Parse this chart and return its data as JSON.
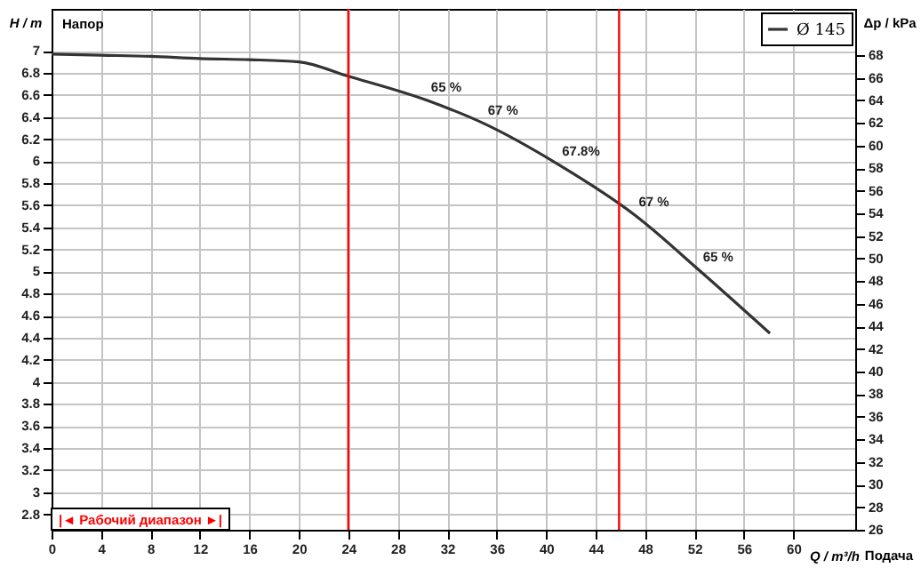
{
  "chart_data": {
    "type": "line",
    "xlabel": "Q / m³/h",
    "ylabel": "H / m",
    "y2label": "Δp / kPa",
    "series": [
      {
        "name": "Ø 145",
        "color": "#333333",
        "x": [
          0,
          4,
          8,
          12,
          16,
          20,
          24,
          30.4,
          35,
          41,
          47.2,
          52.4,
          58.1
        ],
        "values": [
          6.97,
          6.96,
          6.95,
          6.93,
          6.92,
          6.9,
          6.77,
          6.55,
          6.34,
          5.97,
          5.51,
          5.01,
          4.44
        ]
      }
    ],
    "xlim": [
      0,
      65
    ],
    "xticks": [
      0,
      4,
      8,
      12,
      16,
      20,
      24,
      28,
      32,
      36,
      40,
      44,
      48,
      52,
      56,
      60
    ],
    "ylim": [
      2.66,
      7.38
    ],
    "yticks": [
      2.8,
      3,
      3.2,
      3.4,
      3.6,
      3.8,
      4,
      4.2,
      4.4,
      4.6,
      4.8,
      5,
      5.2,
      5.4,
      5.6,
      5.8,
      6,
      6.2,
      6.4,
      6.6,
      6.8,
      7
    ],
    "y2lim": [
      26,
      72.1
    ],
    "y2ticks": [
      26,
      28,
      30,
      32,
      34,
      36,
      38,
      40,
      42,
      44,
      46,
      48,
      50,
      52,
      54,
      56,
      58,
      60,
      62,
      64,
      66,
      68
    ],
    "ref_lines": [
      {
        "axis": "x",
        "value": 24,
        "label": null,
        "color": "#ff0000"
      },
      {
        "axis": "x",
        "value": 45.9,
        "label": null,
        "color": "#ff0000"
      }
    ],
    "annotations": [
      {
        "text": "65 %",
        "x": 30.4,
        "y": 6.55
      },
      {
        "text": "67 %",
        "x": 35,
        "y": 6.34
      },
      {
        "text": "67.8%",
        "x": 41,
        "y": 5.97
      },
      {
        "text": "67 %",
        "x": 47.2,
        "y": 5.51
      },
      {
        "text": "65 %",
        "x": 52.4,
        "y": 5.01
      },
      "Напор",
      "|◄ Рабочий диапазон ►|",
      "Подача"
    ],
    "grid": true,
    "legend": "top right",
    "marker": "none",
    "line_style": "solid"
  }
}
